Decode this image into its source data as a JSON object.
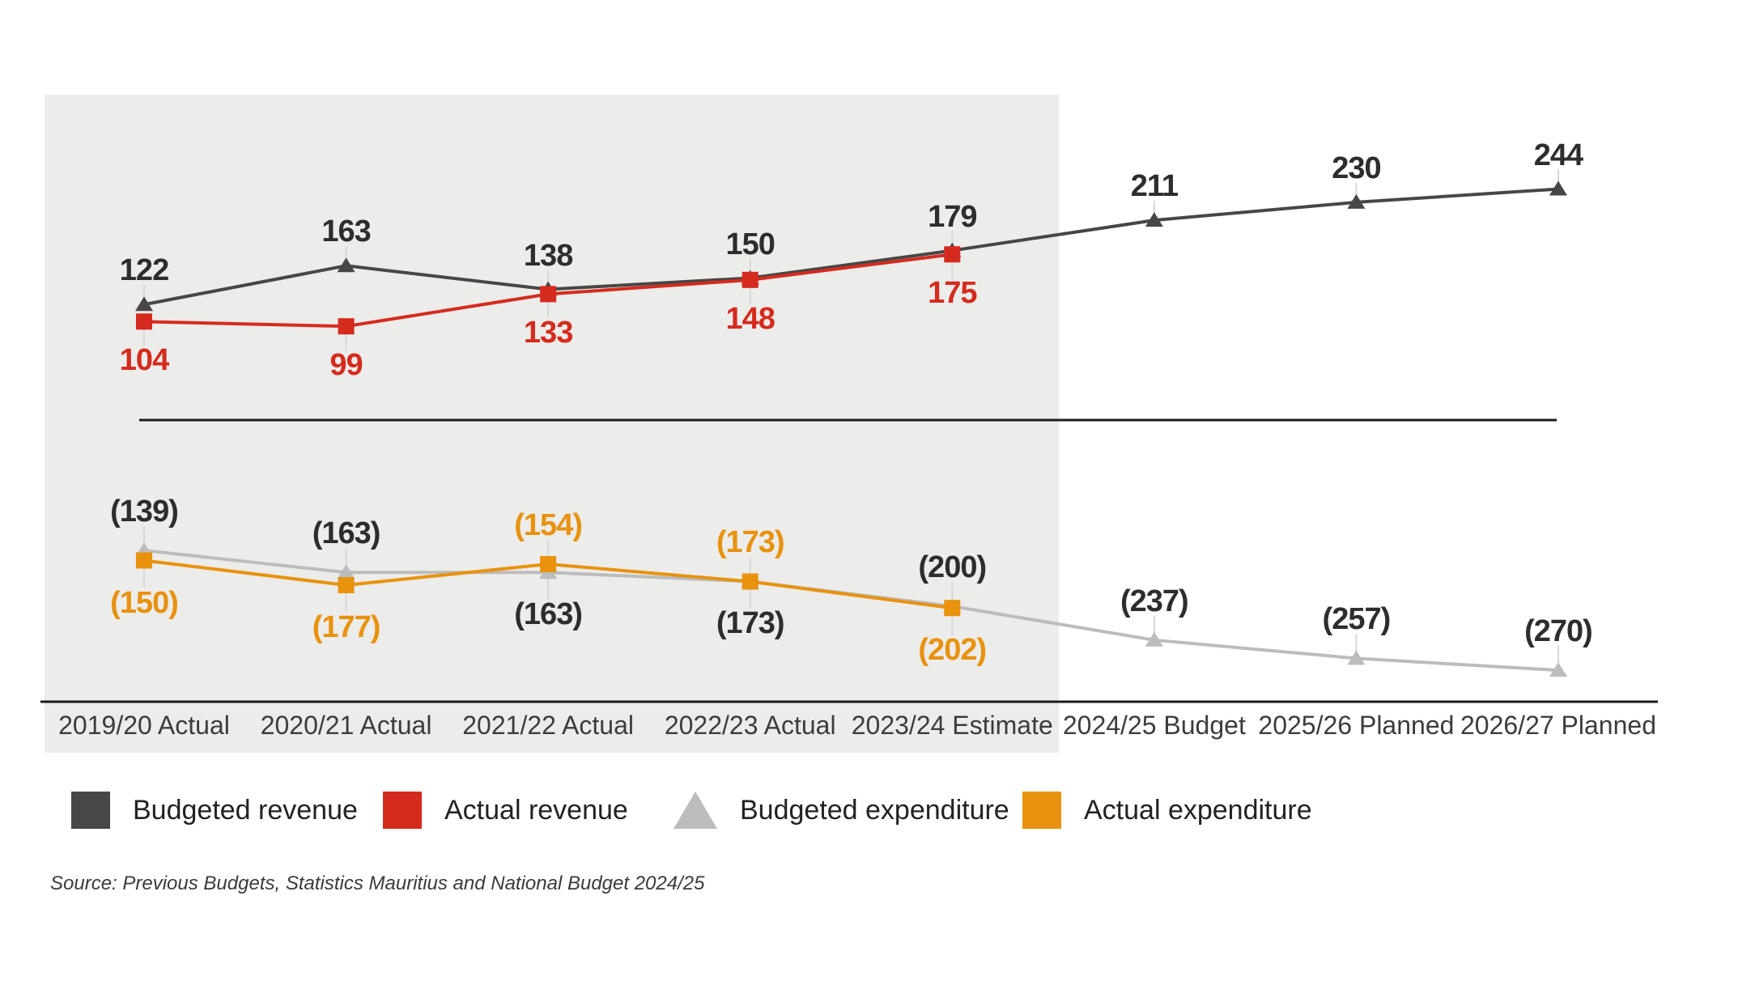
{
  "source": "Source: Previous Budgets, Statistics Mauritius and National Budget 2024/25",
  "colors": {
    "budgeted_revenue": "#474747",
    "actual_revenue": "#d52b1e",
    "budgeted_expenditure": "#bcbcbc",
    "actual_expenditure": "#e8920e",
    "axis_line": "#1c1c1c",
    "highlight_background": "#ececea",
    "leader_line": "#d8d8d8",
    "dark_label": "#2d2d2d"
  },
  "chart_data": {
    "type": "line",
    "title": "",
    "categories": [
      "2019/20 Actual",
      "2020/21 Actual",
      "2021/22 Actual",
      "2022/23 Actual",
      "2023/24 Estimate",
      "2024/25 Budget",
      "2025/26 Planned",
      "2026/27 Planned"
    ],
    "highlighted_categories": [
      "2019/20 Actual",
      "2020/21 Actual",
      "2021/22 Actual",
      "2022/23 Actual",
      "2023/24 Estimate"
    ],
    "legend_position": "bottom",
    "grid": false,
    "series": [
      {
        "name": "Budgeted revenue",
        "section": "revenue",
        "marker": "triangle",
        "color": "#474747",
        "label_color": "#2d2d2d",
        "values": [
          122,
          163,
          138,
          150,
          179,
          211,
          230,
          244
        ],
        "label_side": [
          "above",
          "above",
          "above",
          "above",
          "above",
          "above",
          "above",
          "above"
        ]
      },
      {
        "name": "Actual revenue",
        "section": "revenue",
        "marker": "square",
        "color": "#d52b1e",
        "label_color": "#d52b1e",
        "values": [
          104,
          99,
          133,
          148,
          175,
          null,
          null,
          null
        ],
        "label_side": [
          "below",
          "below",
          "below",
          "below",
          "below",
          null,
          null,
          null
        ]
      },
      {
        "name": "Budgeted expenditure",
        "section": "expenditure",
        "marker": "triangle",
        "color": "#bcbcbc",
        "label_color": "#2d2d2d",
        "values": [
          -139,
          -163,
          -163,
          -173,
          -200,
          -237,
          -257,
          -270
        ],
        "label_side": [
          "above",
          "above",
          "below",
          "below",
          "above",
          "above",
          "above",
          "above"
        ]
      },
      {
        "name": "Actual expenditure",
        "section": "expenditure",
        "marker": "square",
        "color": "#e8920e",
        "label_color": "#e8920e",
        "values": [
          -150,
          -177,
          -154,
          -173,
          -202,
          null,
          null,
          null
        ],
        "label_side": [
          "below",
          "below",
          "above",
          "above",
          "below",
          null,
          null,
          null
        ]
      }
    ]
  }
}
